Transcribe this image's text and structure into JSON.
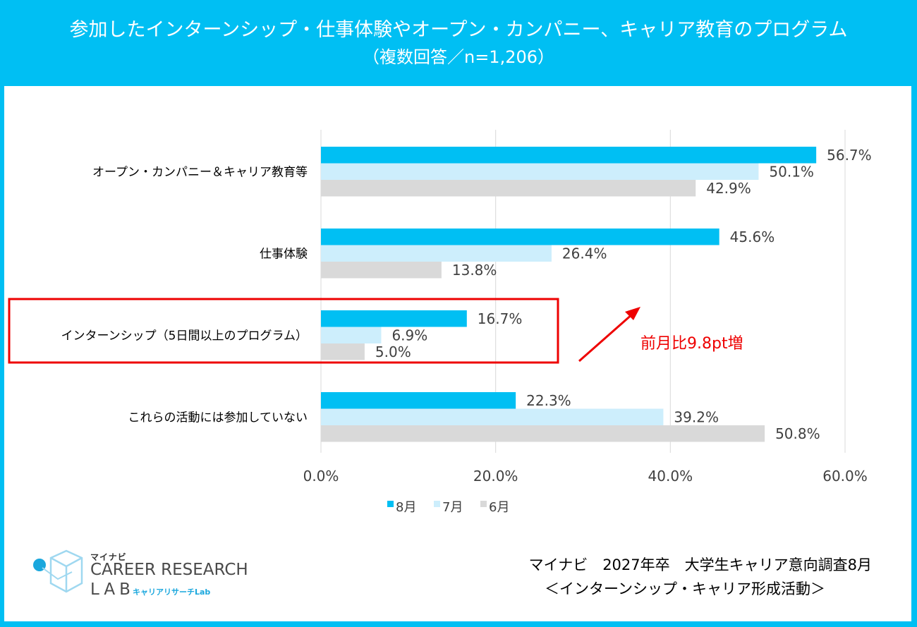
{
  "header": {
    "title": "参加したインターンシップ・仕事体験やオープン・カンパニー、キャリア教育のプログラム",
    "subtitle": "（複数回答／n=1,206）"
  },
  "chart_data": {
    "type": "bar",
    "orientation": "horizontal",
    "categories": [
      "オープン・カンパニー＆キャリア教育等",
      "仕事体験",
      "インターンシップ（5日間以上のプログラム）",
      "これらの活動には参加していない"
    ],
    "series": [
      {
        "name": "8月",
        "color": "#00bff3",
        "values": [
          56.7,
          45.6,
          16.7,
          22.3
        ]
      },
      {
        "name": "7月",
        "color": "#cdeefc",
        "values": [
          50.1,
          26.4,
          6.9,
          39.2
        ]
      },
      {
        "name": "6月",
        "color": "#d9d9d9",
        "values": [
          42.9,
          13.8,
          5.0,
          50.8
        ]
      }
    ],
    "value_labels": [
      [
        "56.7%",
        "50.1%",
        "42.9%"
      ],
      [
        "45.6%",
        "26.4%",
        "13.8%"
      ],
      [
        "16.7%",
        "6.9%",
        "5.0%"
      ],
      [
        "22.3%",
        "39.2%",
        "50.8%"
      ]
    ],
    "xlim": [
      0,
      60
    ],
    "xticks": [
      0,
      20,
      40,
      60
    ],
    "xtick_labels": [
      "0.0%",
      "20.0%",
      "40.0%",
      "60.0%"
    ],
    "grid": true,
    "legend": "bottom",
    "highlight_category": 2,
    "annotation": "前月比9.8pt増"
  },
  "logo": {
    "top": "マイナビ",
    "main": "CAREER RESEARCH",
    "lab": "LAB",
    "sub": "キャリアリサーチLab"
  },
  "source": {
    "line1": "マイナビ　2027年卒　大学生キャリア意向調査8月",
    "line2": "＜インターンシップ・キャリア形成活動＞"
  }
}
